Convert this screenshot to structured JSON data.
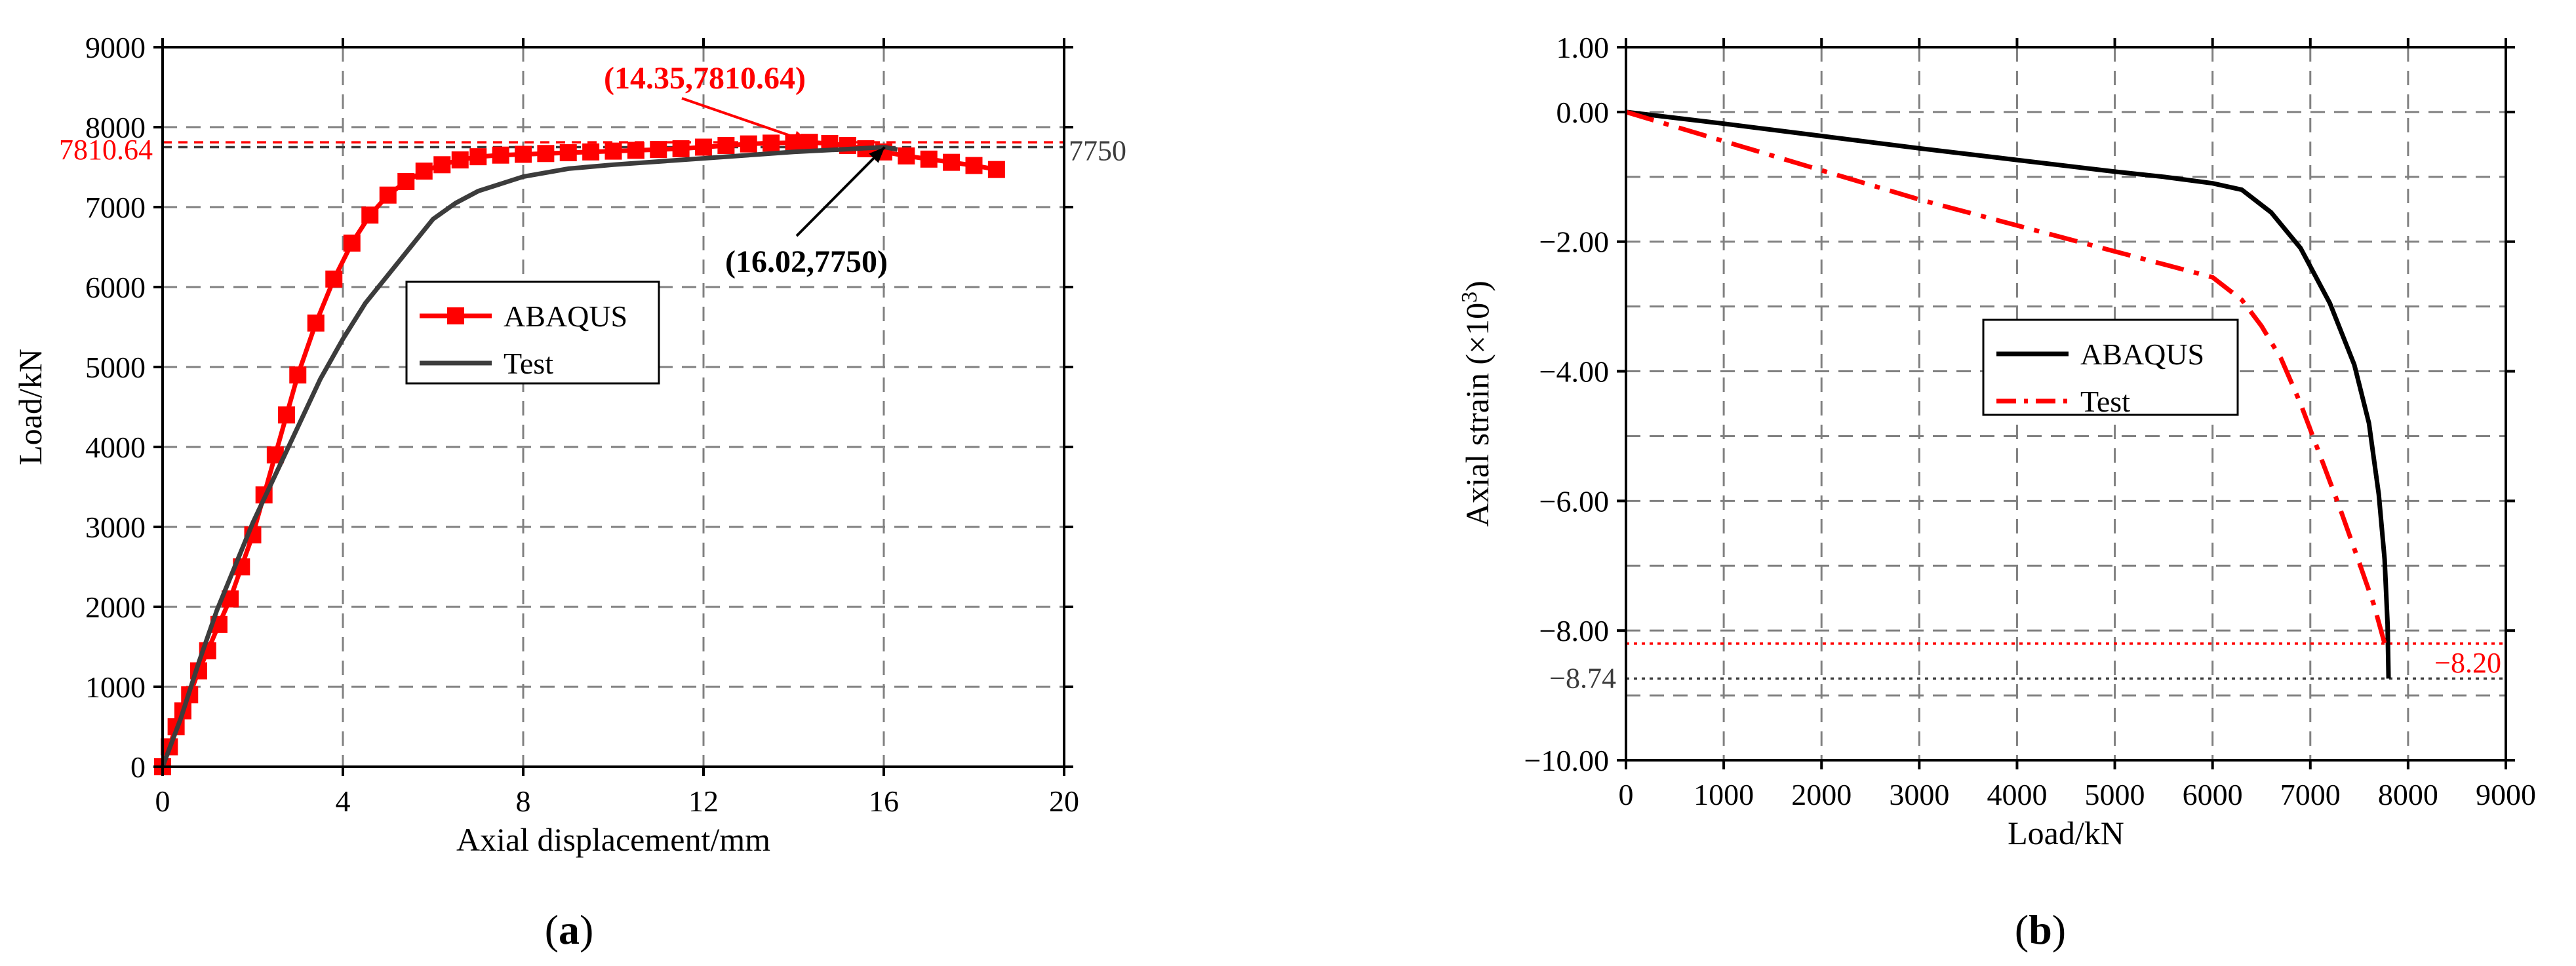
{
  "figure": {
    "panels": [
      {
        "label_open": "(",
        "label_letter": "a",
        "label_close": ")"
      },
      {
        "label_open": "(",
        "label_letter": "b",
        "label_close": ")"
      }
    ]
  },
  "chart_data": [
    {
      "type": "line",
      "panel": "a",
      "xlabel": "Axial displacement/mm",
      "ylabel": "Load/kN",
      "xlim": [
        0,
        20
      ],
      "ylim": [
        0,
        9000
      ],
      "xticks": [
        0,
        4,
        8,
        12,
        16,
        20
      ],
      "yticks": [
        0,
        1000,
        2000,
        3000,
        4000,
        5000,
        6000,
        7000,
        8000,
        9000
      ],
      "grid": true,
      "legend": {
        "position": "center-left"
      },
      "series": [
        {
          "name": "ABAQUS",
          "color": "#ff0000",
          "marker": "square",
          "x": [
            0,
            0.15,
            0.3,
            0.45,
            0.6,
            0.8,
            1.0,
            1.25,
            1.5,
            1.75,
            2.0,
            2.25,
            2.5,
            2.75,
            3.0,
            3.4,
            3.8,
            4.2,
            4.6,
            5.0,
            5.4,
            5.8,
            6.2,
            6.6,
            7.0,
            7.5,
            8.0,
            8.5,
            9.0,
            9.5,
            10.0,
            10.5,
            11.0,
            11.5,
            12.0,
            12.5,
            13.0,
            13.5,
            14.0,
            14.35,
            14.8,
            15.2,
            15.6,
            16.0,
            16.5,
            17.0,
            17.5,
            18.0,
            18.5
          ],
          "y": [
            0,
            250,
            500,
            700,
            900,
            1200,
            1450,
            1780,
            2100,
            2500,
            2900,
            3400,
            3900,
            4400,
            4900,
            5550,
            6100,
            6550,
            6900,
            7150,
            7320,
            7450,
            7530,
            7590,
            7630,
            7650,
            7660,
            7670,
            7680,
            7690,
            7700,
            7710,
            7720,
            7730,
            7750,
            7770,
            7790,
            7800,
            7805,
            7810,
            7795,
            7770,
            7730,
            7690,
            7640,
            7600,
            7560,
            7520,
            7470
          ]
        },
        {
          "name": "Test",
          "color": "#3c3c3c",
          "marker": "none",
          "x": [
            0,
            0.4,
            0.8,
            1.2,
            1.6,
            2.0,
            2.5,
            3.0,
            3.5,
            4.0,
            4.5,
            5.0,
            5.5,
            6.0,
            6.5,
            7.0,
            8.0,
            9.0,
            10.0,
            11.0,
            12.0,
            13.0,
            14.0,
            15.0,
            16.02,
            16.3
          ],
          "y": [
            0,
            600,
            1300,
            1950,
            2500,
            3050,
            3650,
            4250,
            4850,
            5350,
            5800,
            6150,
            6500,
            6850,
            7050,
            7200,
            7380,
            7480,
            7530,
            7570,
            7610,
            7650,
            7690,
            7720,
            7750,
            7720
          ]
        }
      ],
      "annotations": [
        {
          "text": "(14.35,7810.64)",
          "color": "#ff0000",
          "x": 14.35,
          "y": 7810.64
        },
        {
          "text": "(16.02,7750)",
          "color": "#000000",
          "x": 16.02,
          "y": 7750
        }
      ],
      "reference_lines": [
        {
          "axis": "y",
          "value": 7810.64,
          "label": "7810.64",
          "color": "#ff0000",
          "style": "dashed"
        },
        {
          "axis": "y",
          "value": 7750,
          "label": "7750",
          "color": "#3c3c3c",
          "style": "dashed"
        }
      ]
    },
    {
      "type": "line",
      "panel": "b",
      "xlabel": "Load/kN",
      "ylabel": "Axial strain (×10",
      "ylabel_sup": "3",
      "ylabel_close": ")",
      "xlim": [
        0,
        9000
      ],
      "ylim": [
        -10,
        1
      ],
      "xticks": [
        0,
        1000,
        2000,
        3000,
        4000,
        5000,
        6000,
        7000,
        8000,
        9000
      ],
      "yticks": [
        1,
        0,
        -2,
        -4,
        -6,
        -8,
        -10
      ],
      "ytick_labels": [
        "1.00",
        "0.00",
        "−2.00",
        "−4.00",
        "−6.00",
        "−8.00",
        "−10.00"
      ],
      "minor_gridlines_y": [
        -1,
        -3,
        -5,
        -7,
        -9
      ],
      "grid": true,
      "legend": {
        "position": "center-right"
      },
      "series": [
        {
          "name": "ABAQUS",
          "color": "#000000",
          "style": "solid",
          "x": [
            0,
            1000,
            2000,
            3000,
            4000,
            5000,
            5500,
            6000,
            6300,
            6600,
            6900,
            7200,
            7450,
            7600,
            7700,
            7760,
            7790,
            7800
          ],
          "y": [
            0,
            -0.18,
            -0.37,
            -0.56,
            -0.74,
            -0.92,
            -1.0,
            -1.1,
            -1.2,
            -1.55,
            -2.1,
            -2.95,
            -3.9,
            -4.8,
            -5.9,
            -6.9,
            -7.9,
            -8.74
          ]
        },
        {
          "name": "Test",
          "color": "#ff0000",
          "style": "dashdot",
          "x": [
            0,
            1000,
            2000,
            3000,
            4000,
            5000,
            5500,
            6000,
            6300,
            6500,
            6700,
            6900,
            7100,
            7300,
            7500,
            7650,
            7760
          ],
          "y": [
            0,
            -0.45,
            -0.9,
            -1.35,
            -1.75,
            -2.15,
            -2.35,
            -2.55,
            -2.9,
            -3.3,
            -3.8,
            -4.5,
            -5.3,
            -6.1,
            -6.95,
            -7.6,
            -8.2
          ]
        }
      ],
      "reference_lines": [
        {
          "axis": "y",
          "value": -8.2,
          "label": "−8.20",
          "color": "#ff0000",
          "style": "dotted"
        },
        {
          "axis": "y",
          "value": -8.74,
          "label": "−8.74",
          "color": "#3c3c3c",
          "style": "dotted"
        }
      ]
    }
  ]
}
